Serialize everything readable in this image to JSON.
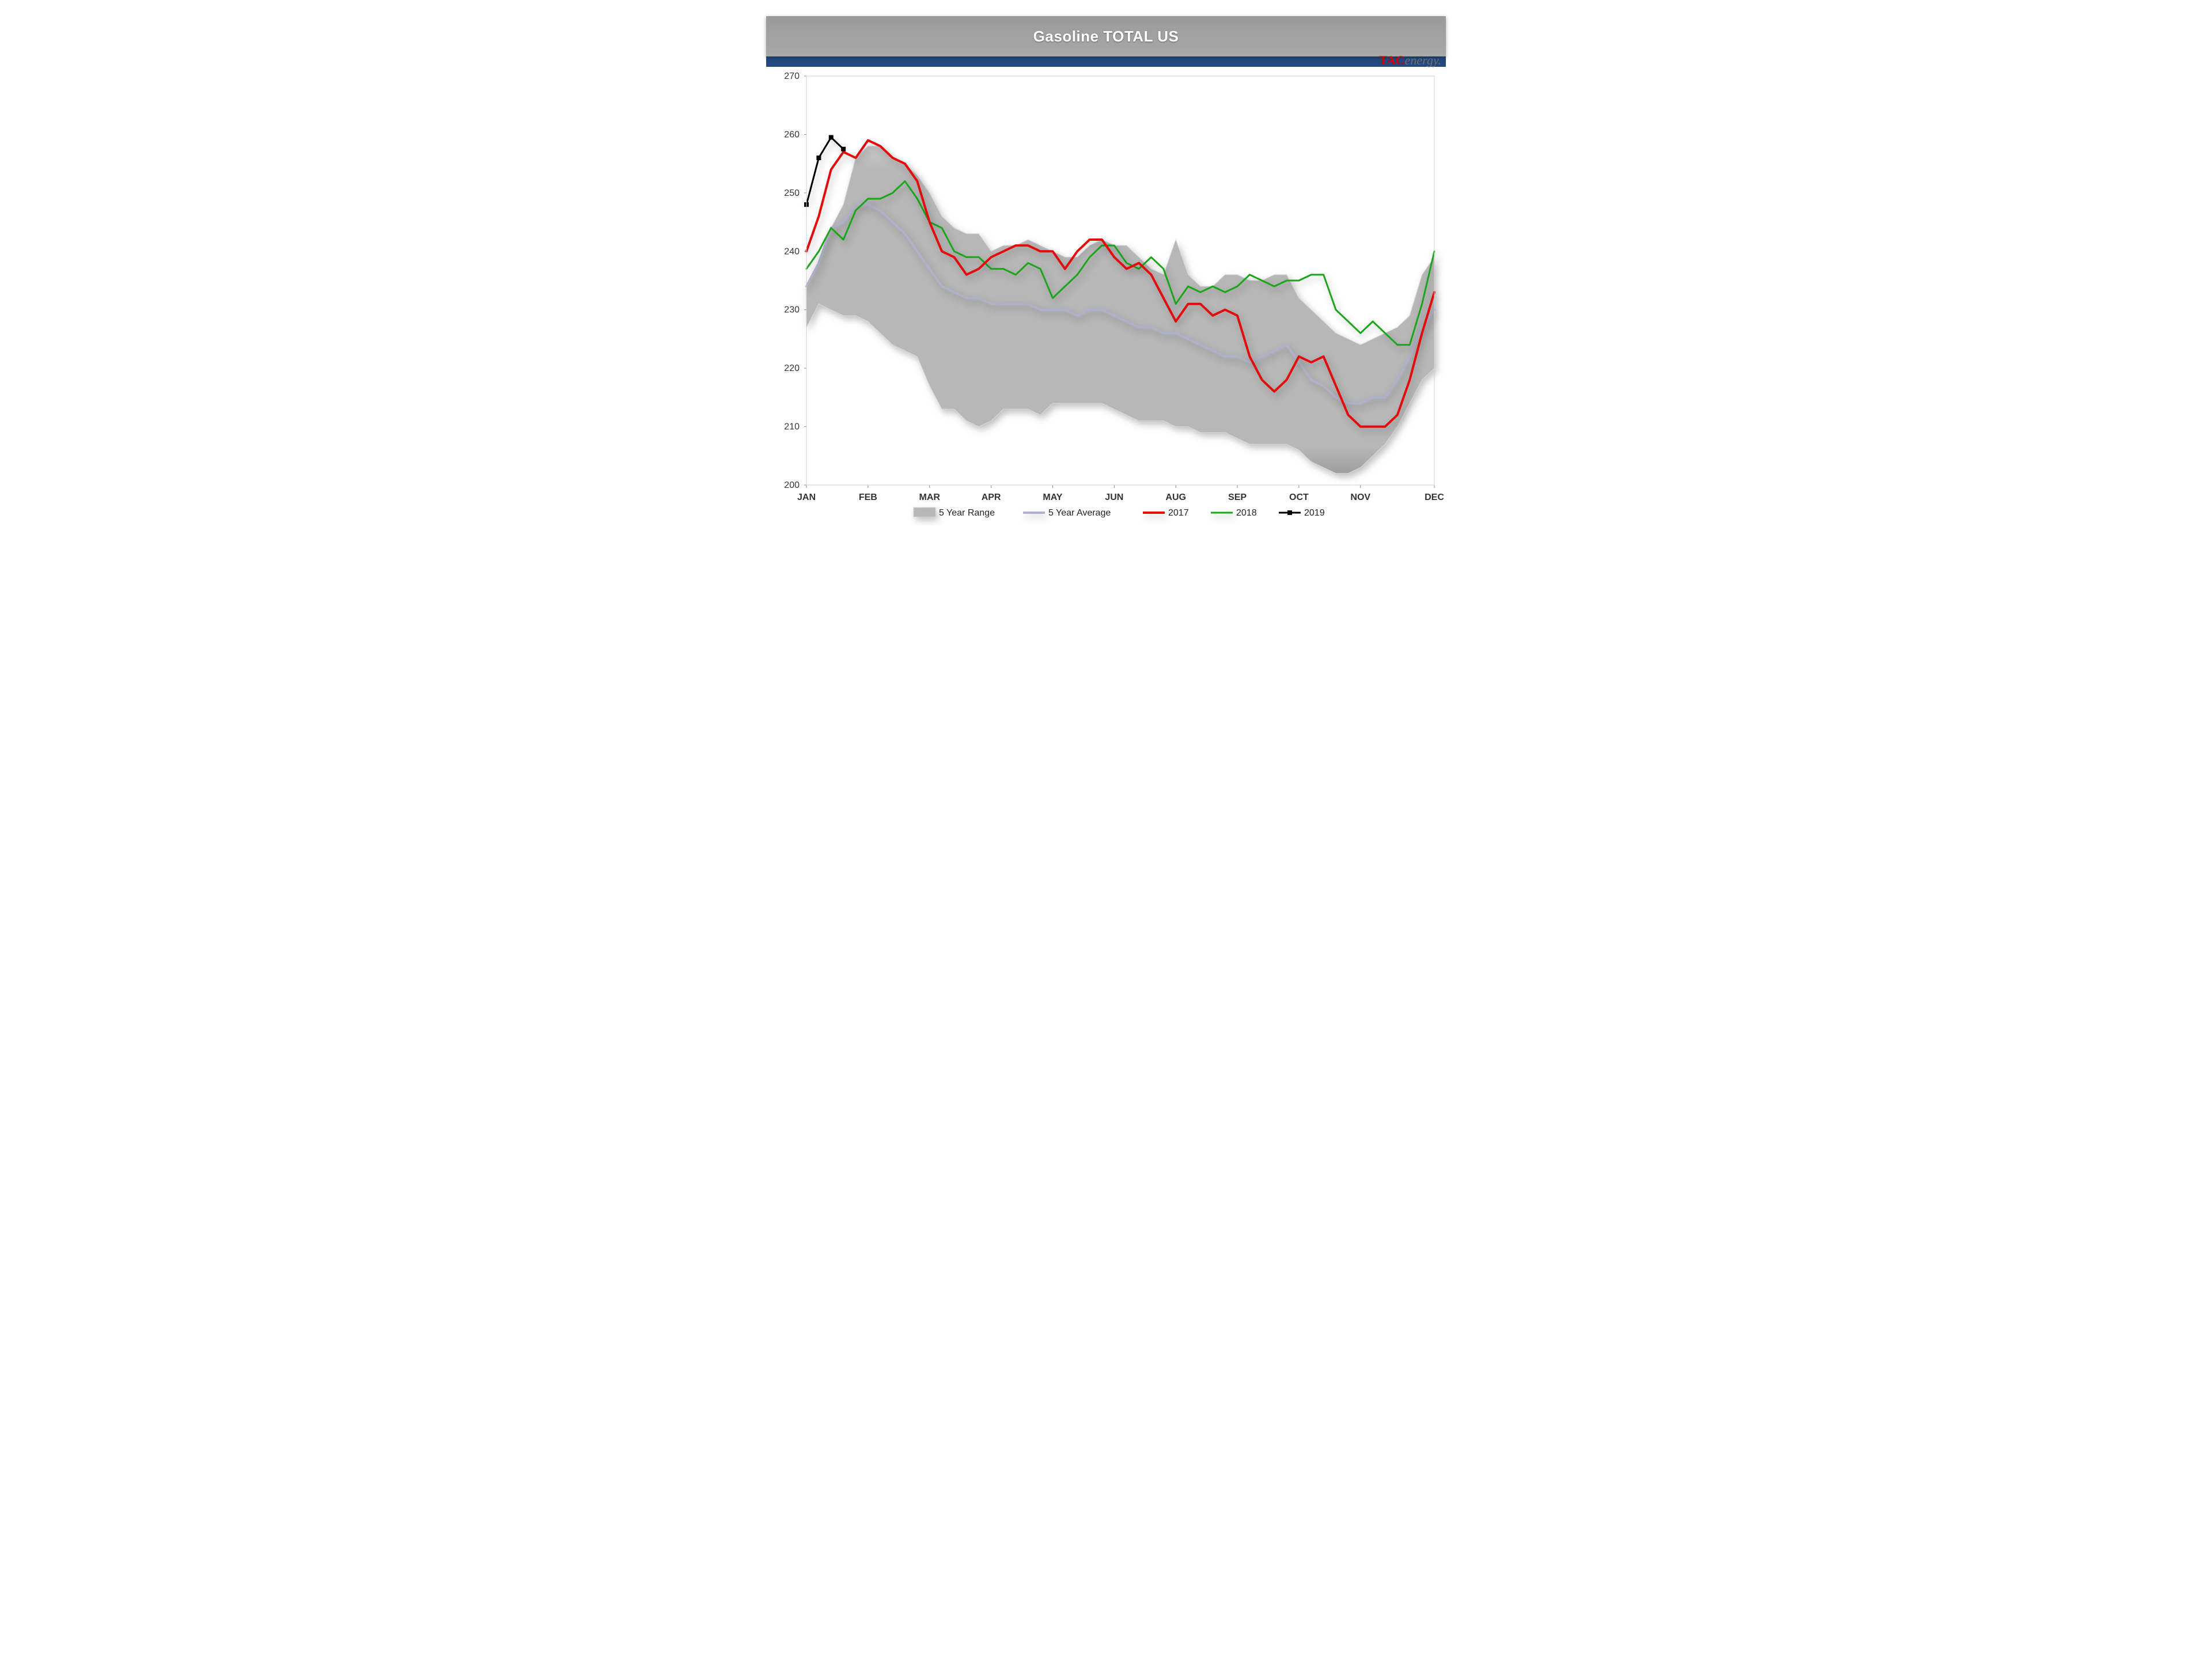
{
  "header": {
    "title": "Gasoline TOTAL US",
    "title_color": "#ffffff",
    "bar_color_top": "#9a9a9a",
    "bar_color_bottom": "#a8a8a8",
    "blue_bar_color": "#23497f",
    "logo_tac": "TAC",
    "logo_energy": "energy.",
    "logo_tac_color": "#cc0000",
    "logo_energy_color": "#6f6f6f"
  },
  "chart": {
    "type": "line_with_range_band",
    "background_color": "#ffffff",
    "plot_area_border_color": "#d0d0d0",
    "shadow_color": "rgba(0,0,0,0.25)",
    "ylim": [
      200,
      270
    ],
    "ytick_step": 10,
    "yticks": [
      200,
      210,
      220,
      230,
      240,
      250,
      260,
      270
    ],
    "xlabels": [
      "JAN",
      "FEB",
      "MAR",
      "APR",
      "MAY",
      "JUN",
      "AUG",
      "SEP",
      "OCT",
      "NOV",
      "DEC"
    ],
    "n_points": 52,
    "xlabel_positions_idx": [
      0,
      5,
      10,
      15,
      20,
      25,
      30,
      35,
      40,
      45,
      51
    ],
    "label_fontsize": 16,
    "month_fontweight": "700",
    "series": {
      "range": {
        "label": "5 Year Range",
        "fill_color": "#b7b7b7",
        "edge_color": "#d6d6d6",
        "upper": [
          234,
          238,
          244,
          248,
          256,
          258,
          258,
          256,
          255,
          253,
          250,
          246,
          244,
          243,
          243,
          240,
          241,
          241,
          242,
          241,
          240,
          239,
          239,
          241,
          242,
          241,
          241,
          239,
          237,
          236,
          242,
          236,
          234,
          234,
          236,
          236,
          235,
          235,
          236,
          236,
          232,
          230,
          228,
          226,
          225,
          224,
          225,
          226,
          227,
          229,
          236,
          239
        ],
        "lower": [
          227,
          231,
          230,
          229,
          229,
          228,
          226,
          224,
          223,
          222,
          217,
          213,
          213,
          211,
          210,
          211,
          213,
          213,
          213,
          212,
          214,
          214,
          214,
          214,
          214,
          213,
          212,
          211,
          211,
          211,
          210,
          210,
          209,
          209,
          209,
          208,
          207,
          207,
          207,
          207,
          206,
          204,
          203,
          202,
          202,
          203,
          205,
          207,
          210,
          214,
          218,
          220
        ]
      },
      "avg": {
        "label": "5 Year Average",
        "color": "#b0b0c8",
        "line_width": 4,
        "values": [
          234,
          238,
          244,
          245,
          248,
          248,
          247,
          245,
          243,
          240,
          237,
          234,
          233,
          232,
          232,
          231,
          231,
          231,
          231,
          230,
          230,
          230,
          229,
          230,
          230,
          229,
          228,
          227,
          227,
          226,
          226,
          225,
          224,
          223,
          222,
          222,
          221,
          222,
          223,
          224,
          221,
          218,
          217,
          215,
          214,
          214,
          215,
          215,
          218,
          222,
          227,
          230
        ]
      },
      "y2017": {
        "label": "2017",
        "color": "#e30b0b",
        "line_width": 4,
        "values": [
          240,
          246,
          254,
          257,
          256,
          259,
          258,
          256,
          255,
          252,
          245,
          240,
          239,
          236,
          237,
          239,
          240,
          241,
          241,
          240,
          240,
          237,
          240,
          242,
          242,
          239,
          237,
          238,
          236,
          232,
          228,
          231,
          231,
          229,
          230,
          229,
          222,
          218,
          216,
          218,
          222,
          221,
          222,
          217,
          212,
          210,
          210,
          210,
          212,
          218,
          226,
          233
        ]
      },
      "y2018": {
        "label": "2018",
        "color": "#1aa61a",
        "line_width": 3,
        "values": [
          237,
          240,
          244,
          242,
          247,
          249,
          249,
          250,
          252,
          249,
          245,
          244,
          240,
          239,
          239,
          237,
          237,
          236,
          238,
          237,
          232,
          234,
          236,
          239,
          241,
          241,
          238,
          237,
          239,
          237,
          231,
          234,
          233,
          234,
          233,
          234,
          236,
          235,
          234,
          235,
          235,
          236,
          236,
          230,
          228,
          226,
          228,
          226,
          224,
          224,
          231,
          240
        ]
      },
      "y2019": {
        "label": "2019",
        "color": "#000000",
        "line_width": 3,
        "marker": "square",
        "marker_size": 8,
        "values": [
          248,
          256,
          259.5,
          257.5
        ]
      }
    },
    "legend": {
      "layout": "horizontal",
      "position": "bottom-center",
      "items": [
        {
          "key": "range",
          "swatch": "band",
          "label": "5 Year Range"
        },
        {
          "key": "avg",
          "swatch": "line",
          "label": "5 Year Average"
        },
        {
          "key": "y2017",
          "swatch": "line",
          "label": "2017"
        },
        {
          "key": "y2018",
          "swatch": "line",
          "label": "2018"
        },
        {
          "key": "y2019",
          "swatch": "line-marker",
          "label": "2019"
        }
      ]
    }
  }
}
